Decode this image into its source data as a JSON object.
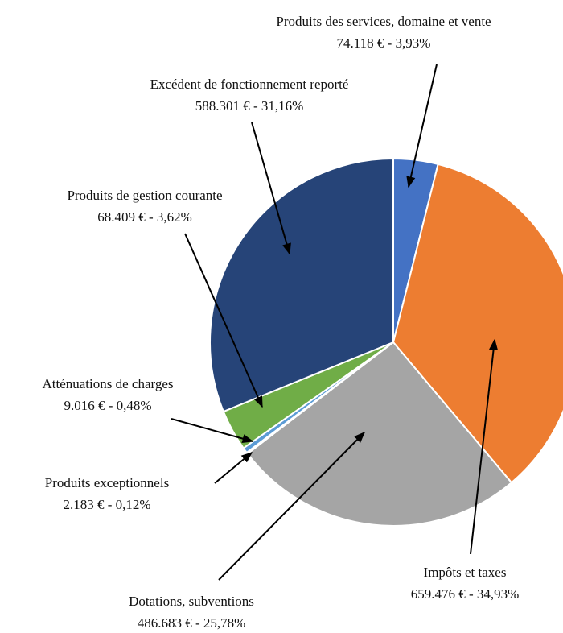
{
  "chart_data": {
    "type": "pie",
    "categories": [
      "Produits des services, domaine et vente",
      "Impôts et taxes",
      "Dotations, subventions",
      "Produits exceptionnels",
      "Atténuations de charges",
      "Produits de gestion courante",
      "Excédent de fonctionnement reporté"
    ],
    "values": [
      74118,
      659476,
      486683,
      2183,
      9016,
      68409,
      588301
    ],
    "value_labels": [
      "74.118 € - 3,93%",
      "659.476 € - 34,93%",
      "486.683 € - 25,78%",
      "2.183 € - 0,12%",
      "9.016 € - 0,48%",
      "68.409 € - 3,62%",
      "588.301 € - 31,16%"
    ],
    "colors": [
      "#4472c4",
      "#ed7d31",
      "#a5a5a5",
      "#4a86c8",
      "#5b9bd5",
      "#70ad47",
      "#264478"
    ]
  }
}
